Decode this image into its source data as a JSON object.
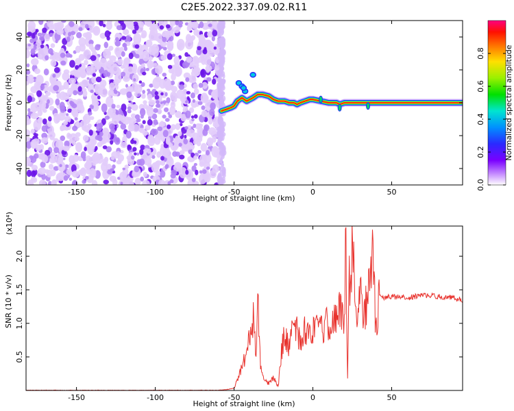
{
  "figure": {
    "title": "C2E5.2022.337.09.02.R11",
    "xlabel": "Height of straight line (km)"
  },
  "chart_data": [
    {
      "type": "heatmap",
      "title": "C2E5.2022.337.09.02.R11",
      "xlabel": "Height of straight line (km)",
      "ylabel": "Frequency (Hz)",
      "xlim": [
        -182,
        95
      ],
      "ylim": [
        -50,
        50
      ],
      "x_ticks": [
        -150,
        -100,
        -50,
        0,
        50
      ],
      "y_ticks": [
        -40,
        -20,
        0,
        20,
        40
      ],
      "noise_region_x": [
        -182,
        -58
      ],
      "ridge": {
        "x": [
          -58,
          -55,
          -52,
          -50,
          -48,
          -45,
          -42,
          -38,
          -35,
          -32,
          -28,
          -25,
          -22,
          -18,
          -15,
          -12,
          -10,
          -8,
          -5,
          -2,
          0,
          5,
          10,
          15,
          17,
          20,
          25,
          30,
          35,
          40,
          50,
          60,
          70,
          80,
          90,
          95
        ],
        "freq": [
          -5,
          -4,
          -3,
          -2,
          1,
          3,
          1,
          3,
          5,
          5,
          4,
          2,
          1,
          1,
          0,
          0,
          -1,
          0,
          1,
          2,
          2,
          1,
          0,
          0,
          -1,
          0,
          0,
          0,
          0,
          0,
          0,
          0,
          0,
          0,
          0,
          0
        ]
      },
      "colorbar": {
        "label": "Normalized spectral amplitude",
        "range": [
          0,
          1
        ],
        "ticks": [
          "0.0",
          "0.2",
          "0.4",
          "0.6",
          "0.8"
        ],
        "colormap": "rainbow (magenta-blue-cyan-green-yellow-red)"
      },
      "grid": false
    },
    {
      "type": "line",
      "xlabel": "Height of straight line (km)",
      "ylabel": "SNR (10 * v/v)",
      "y_multiplier": "(x10⁴)",
      "xlim": [
        -182,
        95
      ],
      "ylim": [
        0,
        2.45
      ],
      "x_ticks": [
        -150,
        -100,
        -50,
        0,
        50
      ],
      "y_ticks": [
        0.5,
        1.0,
        1.5,
        2.0
      ],
      "color": "#e8322d",
      "grid": false,
      "series": [
        {
          "x": [
            -182,
            -150,
            -100,
            -60,
            -55,
            -50,
            -48,
            -45,
            -42,
            -40,
            -38,
            -36,
            -35,
            -34,
            -33,
            -31,
            -28,
            -25,
            -22,
            -20,
            -18,
            -15,
            -12,
            -10,
            -8,
            -5,
            0,
            5,
            10,
            15,
            18,
            20,
            21,
            22,
            23,
            24,
            25,
            28,
            30,
            32,
            35,
            38,
            40,
            42,
            45,
            50,
            60,
            70,
            80,
            90,
            95
          ],
          "y": [
            0.0,
            0.0,
            0.0,
            0.0,
            0.01,
            0.03,
            0.15,
            0.35,
            0.55,
            0.8,
            1.1,
            0.5,
            1.4,
            0.7,
            0.3,
            0.15,
            0.1,
            0.2,
            0.05,
            0.6,
            0.8,
            0.65,
            1.2,
            0.85,
            0.7,
            0.9,
            0.9,
            0.9,
            1.0,
            1.1,
            1.2,
            1.05,
            2.4,
            0.1,
            2.0,
            1.3,
            2.35,
            1.0,
            1.4,
            1.15,
            1.35,
            2.15,
            0.8,
            1.4,
            1.38,
            1.4,
            1.38,
            1.42,
            1.4,
            1.38,
            1.35
          ]
        }
      ]
    }
  ]
}
